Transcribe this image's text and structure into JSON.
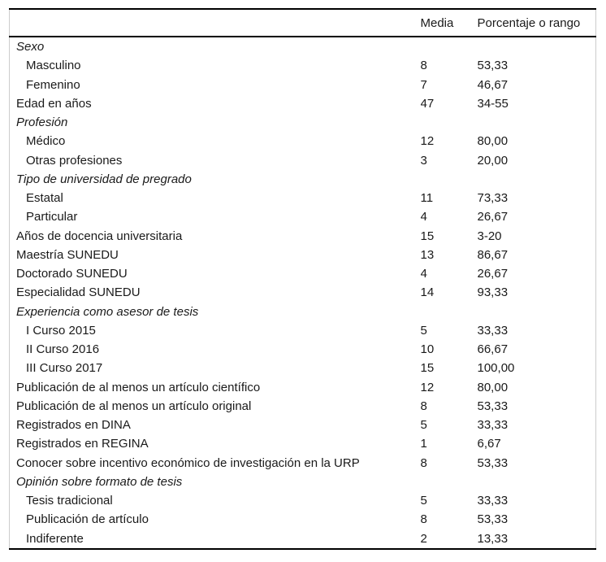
{
  "colors": {
    "background": "#ffffff",
    "text": "#1a1a1a",
    "rule": "#000000",
    "frame": "#cccccc"
  },
  "table": {
    "columns": [
      "",
      "Media",
      "Porcentaje o rango"
    ],
    "rows": [
      {
        "label": "Sexo",
        "media": "",
        "value": "",
        "style": "section"
      },
      {
        "label": "Masculino",
        "media": "8",
        "value": "53,33",
        "style": "item"
      },
      {
        "label": "Femenino",
        "media": "7",
        "value": "46,67",
        "style": "item"
      },
      {
        "label": "Edad en años",
        "media": "47",
        "value": "34-55",
        "style": "row"
      },
      {
        "label": "Profesión",
        "media": "",
        "value": "",
        "style": "section"
      },
      {
        "label": "Médico",
        "media": "12",
        "value": "80,00",
        "style": "item"
      },
      {
        "label": "Otras profesiones",
        "media": "3",
        "value": "20,00",
        "style": "item"
      },
      {
        "label": "Tipo de universidad de pregrado",
        "media": "",
        "value": "",
        "style": "section"
      },
      {
        "label": "Estatal",
        "media": "11",
        "value": "73,33",
        "style": "item"
      },
      {
        "label": "Particular",
        "media": "4",
        "value": "26,67",
        "style": "item"
      },
      {
        "label": "Años de docencia universitaria",
        "media": "15",
        "value": "3-20",
        "style": "row"
      },
      {
        "label": "Maestría SUNEDU",
        "media": "13",
        "value": "86,67",
        "style": "row"
      },
      {
        "label": "Doctorado SUNEDU",
        "media": "4",
        "value": "26,67",
        "style": "row"
      },
      {
        "label": "Especialidad SUNEDU",
        "media": "14",
        "value": "93,33",
        "style": "row"
      },
      {
        "label": "Experiencia como asesor de tesis",
        "media": "",
        "value": "",
        "style": "section"
      },
      {
        "label": "I Curso 2015",
        "media": "5",
        "value": "33,33",
        "style": "item"
      },
      {
        "label": "II Curso 2016",
        "media": "10",
        "value": "66,67",
        "style": "item"
      },
      {
        "label": "III Curso 2017",
        "media": "15",
        "value": "100,00",
        "style": "item"
      },
      {
        "label": "Publicación de al menos un artículo científico",
        "media": "12",
        "value": "80,00",
        "style": "row"
      },
      {
        "label": "Publicación de al menos un artículo original",
        "media": "8",
        "value": "53,33",
        "style": "row"
      },
      {
        "label": "Registrados en DINA",
        "media": "5",
        "value": "33,33",
        "style": "row"
      },
      {
        "label": "Registrados en REGINA",
        "media": "1",
        "value": "6,67",
        "style": "row"
      },
      {
        "label": "Conocer sobre incentivo económico de investigación en la URP",
        "media": "8",
        "value": "53,33",
        "style": "row"
      },
      {
        "label": "Opinión sobre formato de tesis",
        "media": "",
        "value": "",
        "style": "section"
      },
      {
        "label": "Tesis tradicional",
        "media": "5",
        "value": "33,33",
        "style": "item"
      },
      {
        "label": "Publicación de artículo",
        "media": "8",
        "value": "53,33",
        "style": "item"
      },
      {
        "label": "Indiferente",
        "media": "2",
        "value": "13,33",
        "style": "item"
      }
    ]
  }
}
